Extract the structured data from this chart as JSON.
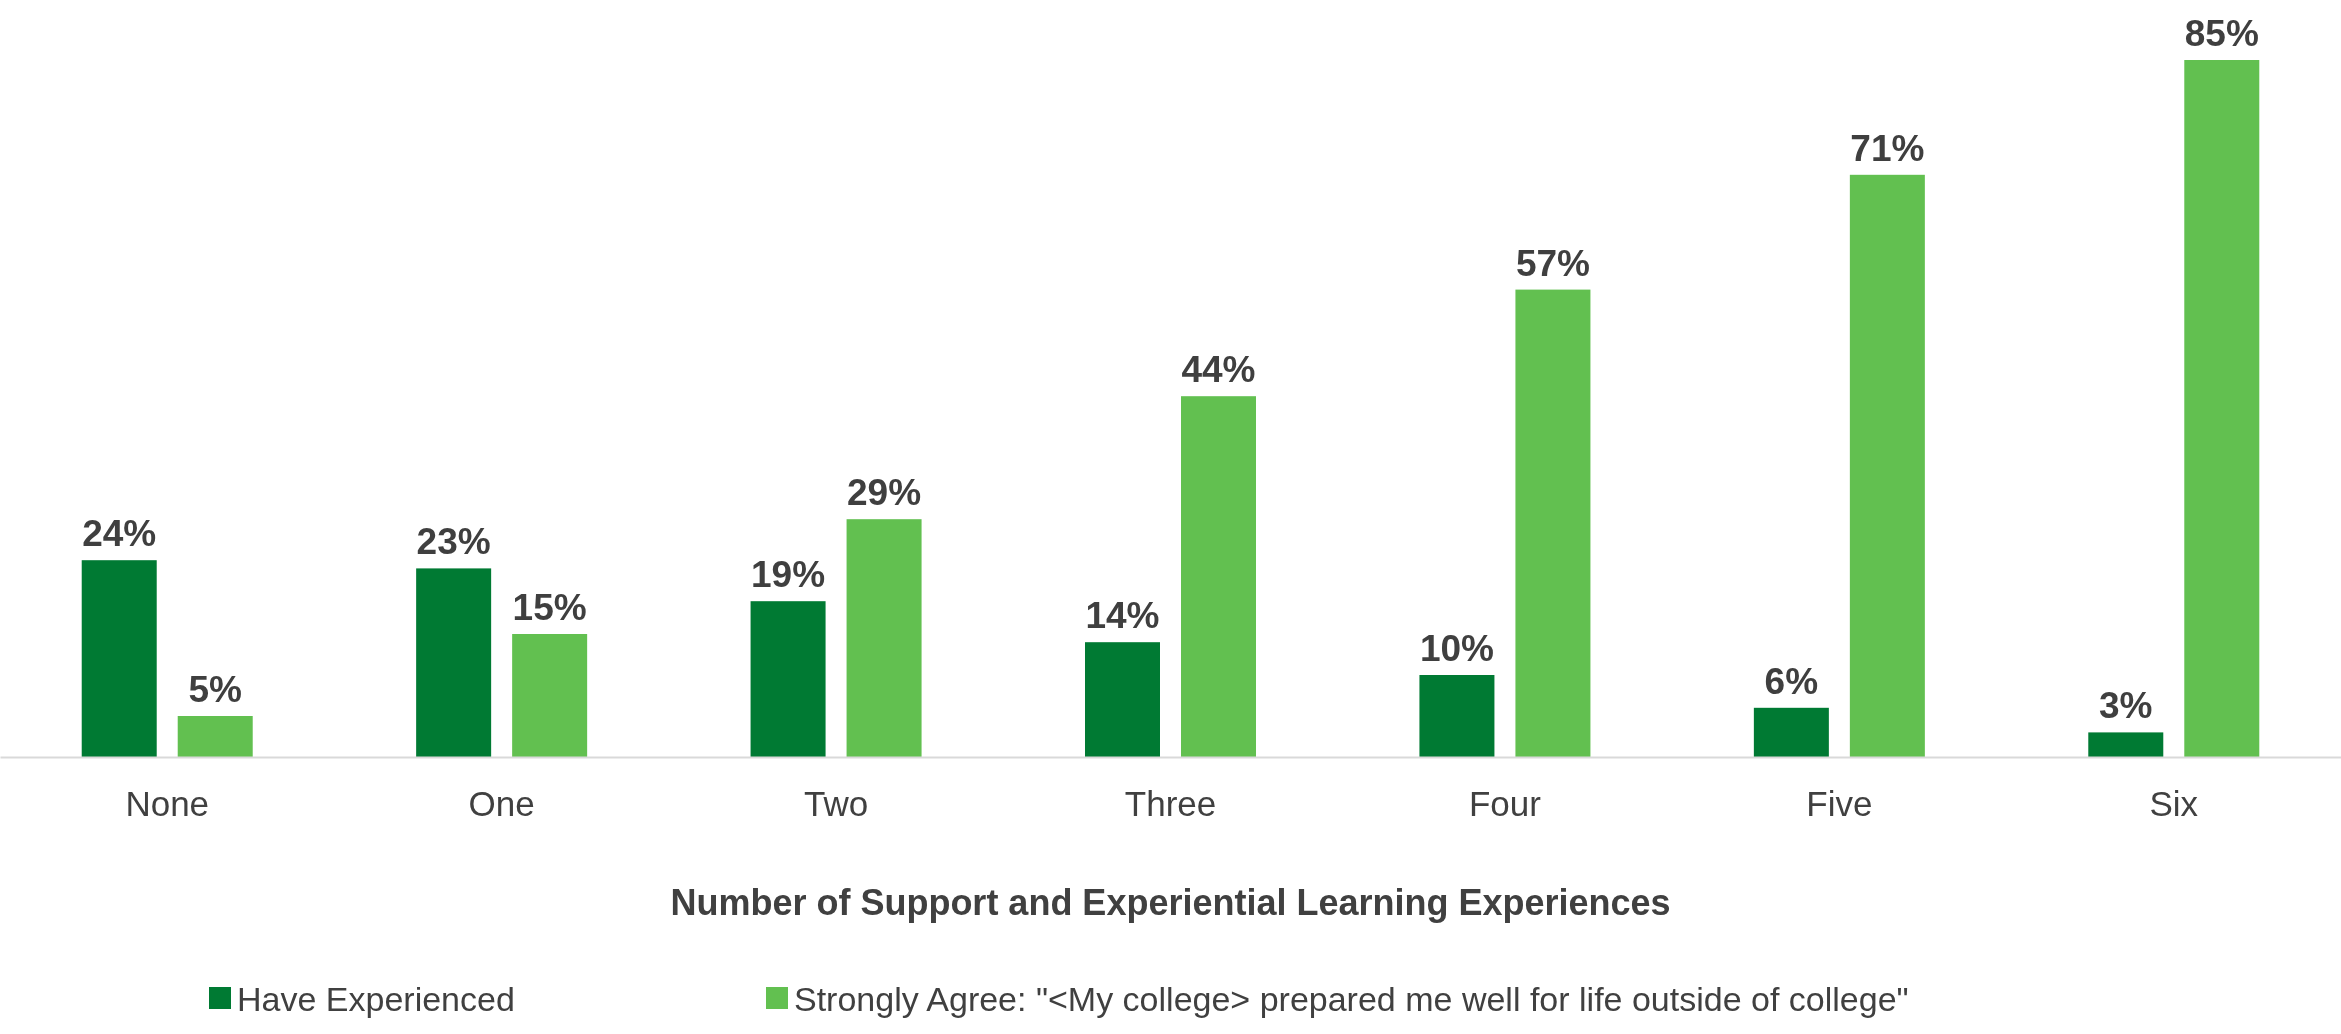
{
  "chart_data": {
    "type": "bar",
    "xlabel": "Number of Support and Experiential Learning Experiences",
    "categories": [
      "None",
      "One",
      "Two",
      "Three",
      "Four",
      "Five",
      "Six"
    ],
    "series": [
      {
        "name": "Have Experienced",
        "color": "#007a33",
        "values": [
          24,
          23,
          19,
          14,
          10,
          6,
          3
        ],
        "value_labels": [
          "24%",
          "23%",
          "19%",
          "14%",
          "10%",
          "6%",
          "3%"
        ]
      },
      {
        "name": "Strongly Agree: \"<My college> prepared me well for life outside of college\"",
        "color": "#62c050",
        "values": [
          5,
          15,
          29,
          44,
          57,
          71,
          85
        ],
        "value_labels": [
          "5%",
          "15%",
          "29%",
          "44%",
          "57%",
          "71%",
          "85%"
        ]
      }
    ],
    "legend": "bottom"
  }
}
